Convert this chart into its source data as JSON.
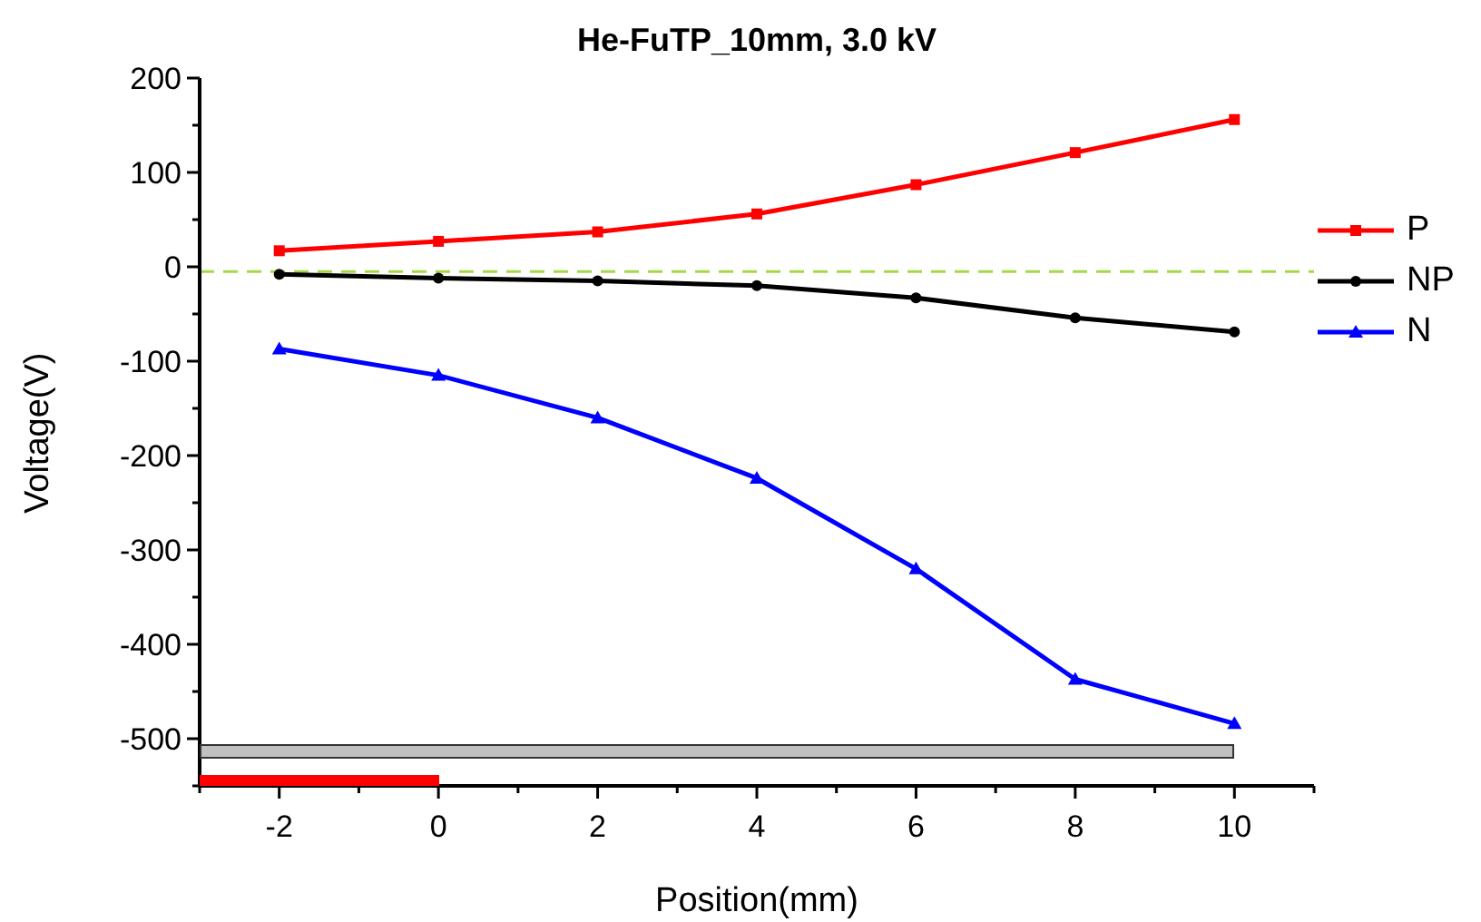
{
  "chart_data": {
    "type": "line",
    "title": "He-FuTP_10mm, 3.0 kV",
    "xlabel": "Position(mm)",
    "ylabel": "Voltage(V)",
    "x": [
      -2,
      0,
      2,
      4,
      6,
      8,
      10
    ],
    "series": [
      {
        "name": "P",
        "color": "#ff0000",
        "marker": "square",
        "values": [
          17,
          27,
          37,
          56,
          87,
          121,
          156
        ]
      },
      {
        "name": "NP",
        "color": "#000000",
        "marker": "circle",
        "values": [
          -8,
          -12,
          -15,
          -20,
          -33,
          -54,
          -69
        ]
      },
      {
        "name": "N",
        "color": "#0000ff",
        "marker": "triangle",
        "values": [
          -87,
          -115,
          -160,
          -224,
          -320,
          -437,
          -484
        ]
      }
    ],
    "xlim": [
      -3,
      11
    ],
    "xticks": [
      {
        "value": -3,
        "label": null
      },
      -2,
      {
        "value": -1,
        "label": null
      },
      0,
      {
        "value": 1,
        "label": null
      },
      2,
      {
        "value": 3,
        "label": null
      },
      4,
      {
        "value": 5,
        "label": null
      },
      6,
      {
        "value": 7,
        "label": null
      },
      8,
      {
        "value": 9,
        "label": null
      },
      10,
      {
        "value": 11,
        "label": null
      }
    ],
    "ylim": [
      -550,
      200
    ],
    "yticks": [
      {
        "value": -550,
        "label": null
      },
      -500,
      {
        "value": -450,
        "label": null
      },
      -400,
      {
        "value": -350,
        "label": null
      },
      -300,
      {
        "value": -250,
        "label": null
      },
      -200,
      {
        "value": -150,
        "label": null
      },
      -100,
      {
        "value": -50,
        "label": null
      },
      0,
      {
        "value": 50,
        "label": null
      },
      100,
      {
        "value": 150,
        "label": null
      },
      200
    ],
    "ref_lines": [
      {
        "axis": "y",
        "value": -5,
        "color": "#a6d84a",
        "line_style": "dashed"
      }
    ],
    "grid": false,
    "legend": "right",
    "line_style": "solid"
  }
}
